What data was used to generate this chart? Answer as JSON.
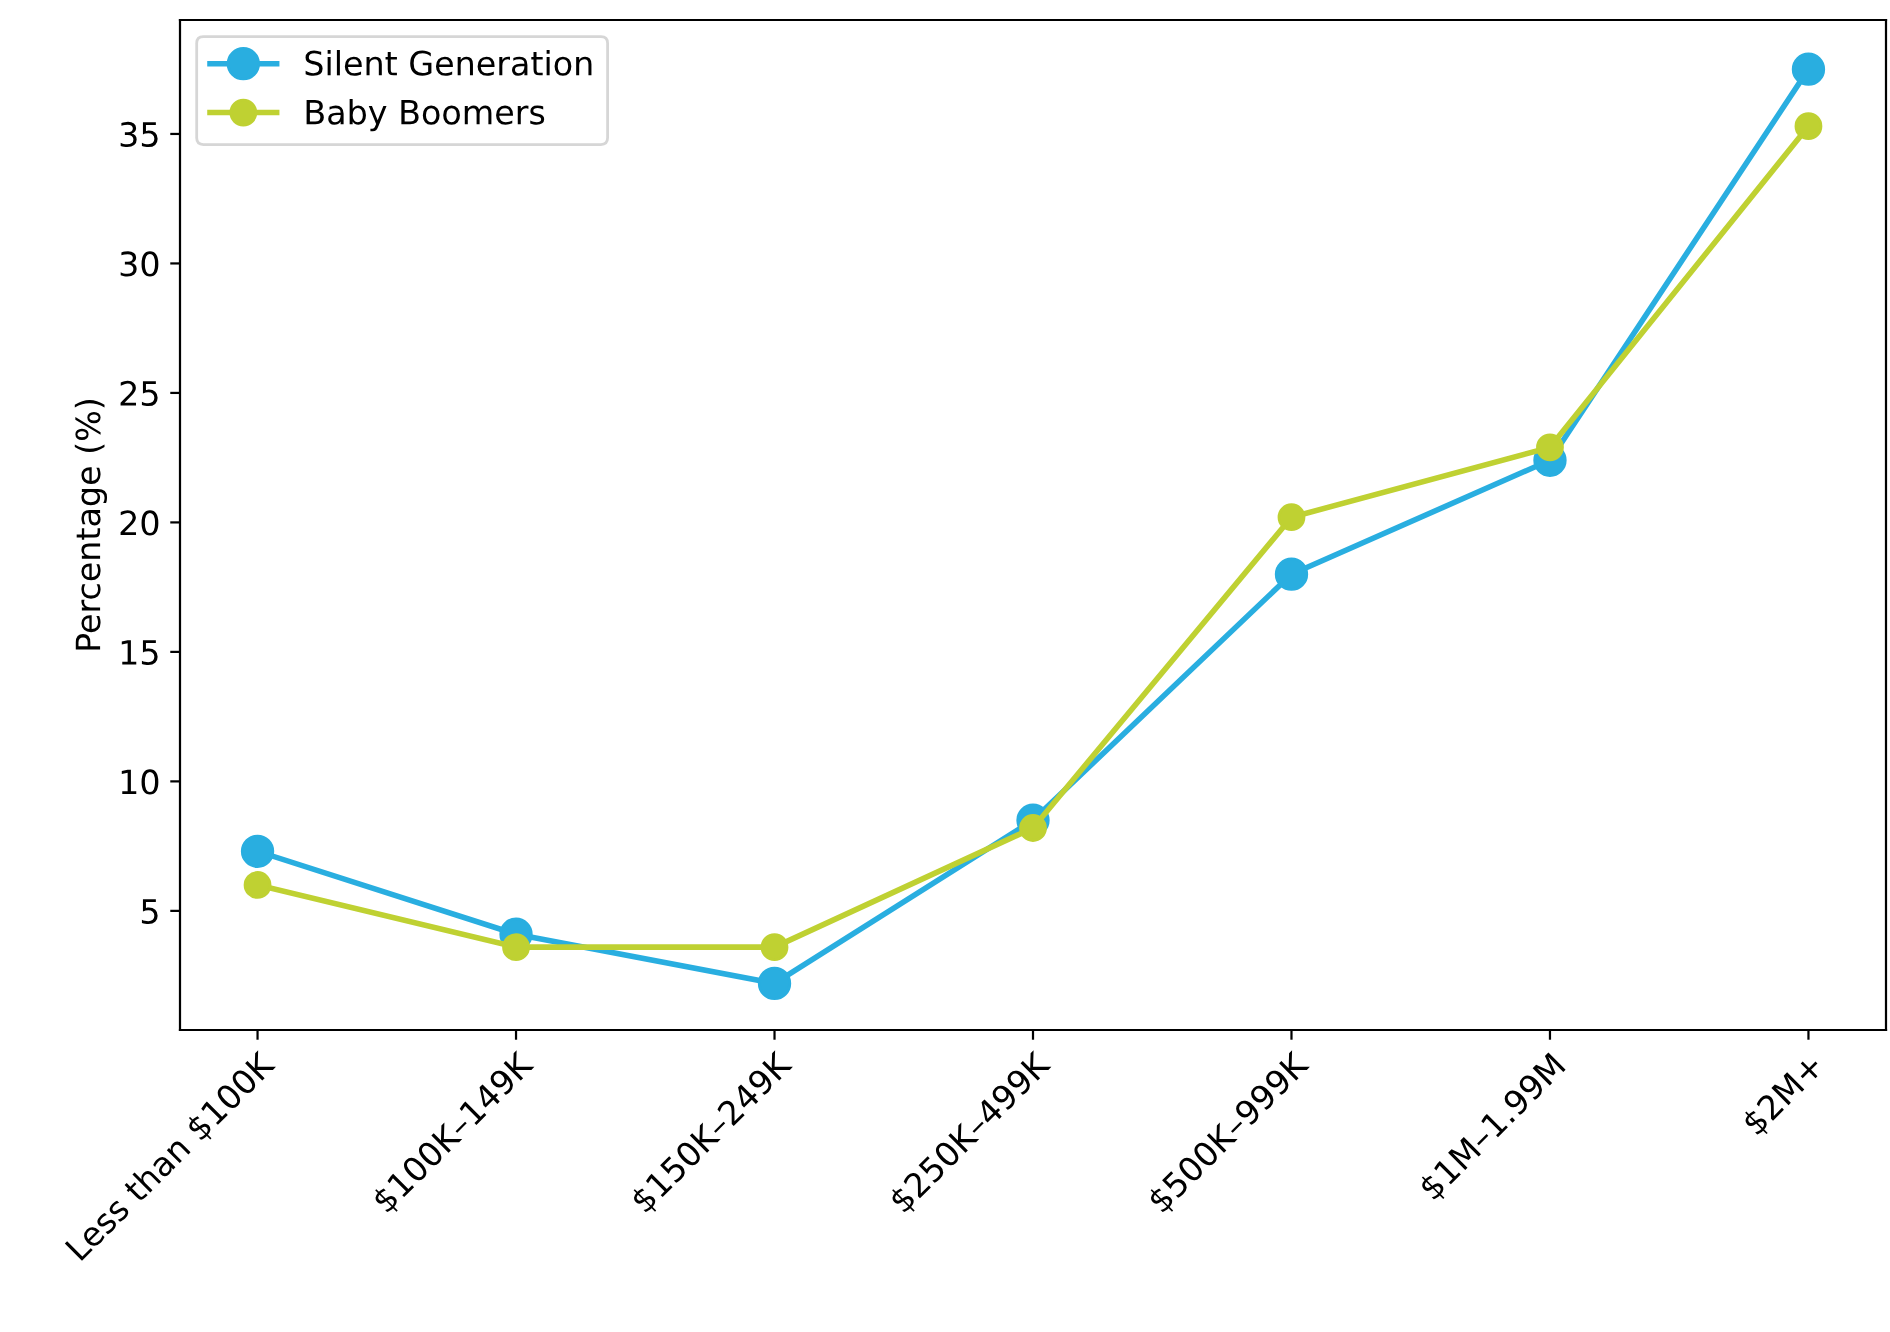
{
  "chart_data": {
    "type": "line",
    "ylabel": "Percentage (%)",
    "categories": [
      "Less than $100K",
      "$100K–149K",
      "$150K–249K",
      "$250K–499K",
      "$500K–999K",
      "$1M–1.99M",
      "$2M+"
    ],
    "series": [
      {
        "name": "Silent Generation",
        "color": "#29aee0",
        "values": [
          7.3,
          4.1,
          2.2,
          8.5,
          18.0,
          22.4,
          37.5
        ]
      },
      {
        "name": "Baby Boomers",
        "color": "#bfd132",
        "values": [
          6.0,
          3.6,
          3.6,
          8.2,
          20.2,
          22.9,
          35.3
        ]
      }
    ],
    "ylim": [
      0.4,
      39.4
    ],
    "yticks": [
      5,
      10,
      15,
      20,
      25,
      30,
      35
    ],
    "marker": "circle",
    "line_style": "solid",
    "grid": false,
    "legend": "top left"
  }
}
